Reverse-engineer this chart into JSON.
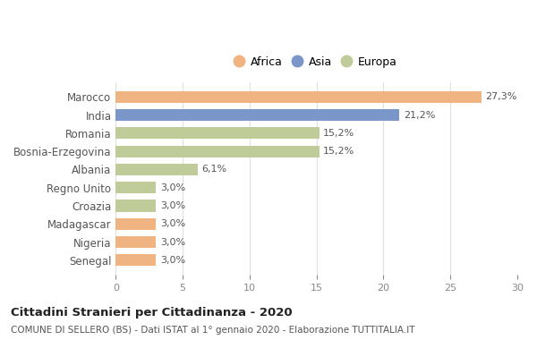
{
  "categories": [
    "Marocco",
    "India",
    "Romania",
    "Bosnia-Erzegovina",
    "Albania",
    "Regno Unito",
    "Croazia",
    "Madagascar",
    "Nigeria",
    "Senegal"
  ],
  "values": [
    27.3,
    21.2,
    15.2,
    15.2,
    6.1,
    3.0,
    3.0,
    3.0,
    3.0,
    3.0
  ],
  "labels": [
    "27,3%",
    "21,2%",
    "15,2%",
    "15,2%",
    "6,1%",
    "3,0%",
    "3,0%",
    "3,0%",
    "3,0%",
    "3,0%"
  ],
  "continents": [
    "Africa",
    "Asia",
    "Europa",
    "Europa",
    "Europa",
    "Europa",
    "Europa",
    "Africa",
    "Africa",
    "Africa"
  ],
  "colors": {
    "Africa": "#F0B482",
    "Asia": "#7B96C8",
    "Europa": "#BFCC9A"
  },
  "legend_entries": [
    "Africa",
    "Asia",
    "Europa"
  ],
  "title": "Cittadini Stranieri per Cittadinanza - 2020",
  "subtitle": "COMUNE DI SELLERO (BS) - Dati ISTAT al 1° gennaio 2020 - Elaborazione TUTTITALIA.IT",
  "xlim": [
    0,
    30
  ],
  "xticks": [
    0,
    5,
    10,
    15,
    20,
    25,
    30
  ],
  "bg_color": "#ffffff",
  "grid_color": "#e0e0e0"
}
